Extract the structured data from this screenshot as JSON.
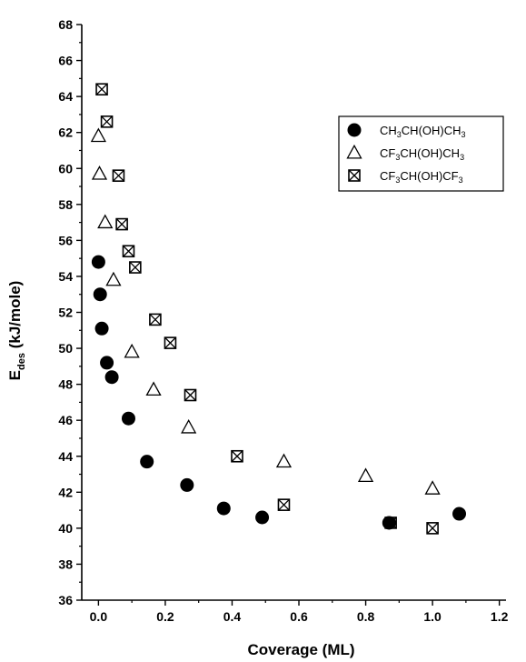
{
  "chart_data": {
    "type": "scatter",
    "xlabel": "Coverage (ML)",
    "ylabel_main": "E",
    "ylabel_sub": "des",
    "ylabel_rest": " (kJ/mole)",
    "xlim": [
      -0.05,
      1.22
    ],
    "ylim": [
      36,
      68
    ],
    "xticks": [
      0.0,
      0.2,
      0.4,
      0.6,
      0.8,
      1.0,
      1.2
    ],
    "xtick_labels": [
      "0.0",
      "0.2",
      "0.4",
      "0.6",
      "0.8",
      "1.0",
      "1.2"
    ],
    "yticks": [
      36,
      38,
      40,
      42,
      44,
      46,
      48,
      50,
      52,
      54,
      56,
      58,
      60,
      62,
      64,
      66,
      68
    ],
    "ytick_labels": [
      "36",
      "38",
      "40",
      "42",
      "44",
      "46",
      "48",
      "50",
      "52",
      "54",
      "56",
      "58",
      "60",
      "62",
      "64",
      "66",
      "68"
    ],
    "legend_position": "top-right",
    "series": [
      {
        "name_parts": [
          [
            "CH",
            ""
          ],
          [
            "3",
            "sub"
          ],
          [
            "CH(OH)CH",
            ""
          ],
          [
            "3",
            "sub"
          ]
        ],
        "marker": "filled-circle",
        "points": [
          [
            0.0,
            54.8
          ],
          [
            0.005,
            53.0
          ],
          [
            0.01,
            51.1
          ],
          [
            0.025,
            49.2
          ],
          [
            0.04,
            48.4
          ],
          [
            0.09,
            46.1
          ],
          [
            0.145,
            43.7
          ],
          [
            0.265,
            42.4
          ],
          [
            0.375,
            41.1
          ],
          [
            0.49,
            40.6
          ],
          [
            0.87,
            40.3
          ],
          [
            1.08,
            40.8
          ]
        ]
      },
      {
        "name_parts": [
          [
            "CF",
            ""
          ],
          [
            "3",
            "sub"
          ],
          [
            "CH(OH)CH",
            ""
          ],
          [
            "3",
            "sub"
          ]
        ],
        "marker": "open-triangle",
        "points": [
          [
            0.0,
            61.8
          ],
          [
            0.003,
            59.7
          ],
          [
            0.02,
            57.0
          ],
          [
            0.045,
            53.8
          ],
          [
            0.1,
            49.8
          ],
          [
            0.165,
            47.7
          ],
          [
            0.27,
            45.6
          ],
          [
            0.555,
            43.7
          ],
          [
            0.8,
            42.9
          ],
          [
            1.0,
            42.2
          ]
        ]
      },
      {
        "name_parts": [
          [
            "CF",
            ""
          ],
          [
            "3",
            "sub"
          ],
          [
            "CH(OH)CF",
            ""
          ],
          [
            "3",
            "sub"
          ]
        ],
        "marker": "boxed-x",
        "points": [
          [
            0.01,
            64.4
          ],
          [
            0.025,
            62.6
          ],
          [
            0.06,
            59.6
          ],
          [
            0.07,
            56.9
          ],
          [
            0.09,
            55.4
          ],
          [
            0.11,
            54.5
          ],
          [
            0.17,
            51.6
          ],
          [
            0.215,
            50.3
          ],
          [
            0.275,
            47.4
          ],
          [
            0.415,
            44.0
          ],
          [
            0.555,
            41.3
          ],
          [
            0.875,
            40.3
          ],
          [
            1.0,
            40.0
          ]
        ]
      }
    ]
  }
}
